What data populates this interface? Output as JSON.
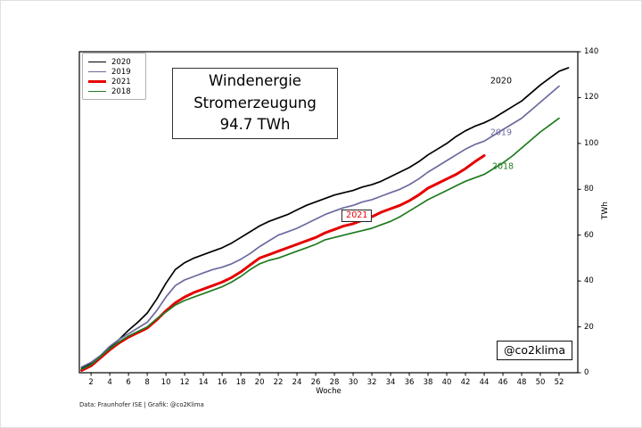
{
  "title_box": {
    "line1": "Windenergie",
    "line2": "Stromerzeugung",
    "line3": "94.7 TWh"
  },
  "watermark": "@co2klima",
  "footer": "Data: Fraunhofer ISE | Grafik: @co2Klima",
  "legend": {
    "items": [
      {
        "label": "2020",
        "color": "#000000",
        "thickness": 1.6
      },
      {
        "label": "2019",
        "color": "#6a6aa0",
        "thickness": 1.6
      },
      {
        "label": "2021",
        "color": "#e60000",
        "thickness": 3
      },
      {
        "label": "2018",
        "color": "#1f7a1f",
        "thickness": 1.6
      }
    ]
  },
  "chart_data": {
    "type": "line",
    "title": "Windenergie Stromerzeugung 94.7 TWh",
    "xlabel": "Woche",
    "ylabel": "TWh",
    "xlim": [
      0.75,
      54
    ],
    "ylim": [
      0,
      140
    ],
    "x_ticks": [
      2,
      4,
      6,
      8,
      10,
      12,
      14,
      16,
      18,
      20,
      22,
      24,
      26,
      28,
      30,
      32,
      34,
      36,
      38,
      40,
      42,
      44,
      46,
      48,
      50,
      52
    ],
    "y_ticks": [
      0,
      20,
      40,
      60,
      80,
      100,
      120,
      140
    ],
    "grid": false,
    "legend_position": "upper left",
    "series": [
      {
        "name": "2020",
        "color": "#000000",
        "line_width": 1.7,
        "start_week": 1,
        "values": [
          2,
          4,
          7,
          11,
          14.5,
          18.5,
          22,
          26,
          32,
          39,
          45,
          48,
          50,
          51.5,
          53,
          54.5,
          56.5,
          59,
          61.5,
          64,
          66,
          67.5,
          69,
          71,
          73,
          74.5,
          76,
          77.5,
          78.5,
          79.5,
          81,
          82,
          83.5,
          85.5,
          87.5,
          89.5,
          92,
          95,
          97.5,
          100,
          103,
          105.5,
          107.5,
          109,
          111,
          113.5,
          116,
          118.5,
          122,
          125.5,
          128.5,
          131.5,
          133
        ]
      },
      {
        "name": "2019",
        "color": "#6a6aa0",
        "line_width": 1.7,
        "start_week": 1,
        "values": [
          2.5,
          4.5,
          7.5,
          11.5,
          14.5,
          17,
          19.5,
          22,
          27,
          33,
          38,
          40.5,
          42,
          43.5,
          45,
          46,
          47.5,
          49.5,
          52,
          55,
          57.5,
          60,
          61.5,
          63,
          65,
          67,
          69,
          70.5,
          72,
          73,
          74.5,
          75.5,
          77,
          78.5,
          80,
          82,
          84.5,
          87.5,
          90,
          92.5,
          95,
          97.5,
          99.5,
          101,
          103.5,
          106,
          108.5,
          111,
          114.5,
          118,
          121.5,
          125
        ]
      },
      {
        "name": "2021",
        "color": "#e60000",
        "line_width": 3,
        "start_week": 1,
        "values": [
          1,
          3,
          6.5,
          10,
          13,
          15.5,
          17.5,
          19.5,
          23,
          27,
          30.5,
          33,
          35,
          36.5,
          38,
          39.5,
          41.5,
          44,
          47,
          50,
          51.5,
          53,
          54.5,
          56,
          57.5,
          59,
          61,
          62.5,
          64,
          65,
          66.5,
          68,
          70,
          71.5,
          73,
          75,
          77.5,
          80.5,
          82.5,
          84.5,
          86.5,
          89,
          92,
          94.7
        ]
      },
      {
        "name": "2018",
        "color": "#1f7a1f",
        "line_width": 1.7,
        "start_week": 1,
        "values": [
          1.5,
          3.5,
          7,
          10.5,
          13.5,
          16,
          18,
          20,
          23.5,
          26.5,
          29.5,
          31.5,
          33,
          34.5,
          36,
          37.5,
          39.5,
          42,
          45,
          47.5,
          49,
          50,
          51.5,
          53,
          54.5,
          56,
          58,
          59,
          60,
          61,
          62,
          63,
          64.5,
          66,
          68,
          70.5,
          73,
          75.5,
          77.5,
          79.5,
          81.5,
          83.5,
          85,
          86.5,
          89,
          91.5,
          94.5,
          98,
          101.5,
          105,
          108,
          111
        ]
      }
    ],
    "annotations": [
      {
        "text": "2020",
        "color": "#000000",
        "week": 45.8,
        "twh": 127.0,
        "boxed": false
      },
      {
        "text": "2019",
        "color": "#6a6aa0",
        "week": 45.8,
        "twh": 104.5,
        "boxed": false
      },
      {
        "text": "2018",
        "color": "#1f7a1f",
        "week": 46.0,
        "twh": 90.0,
        "boxed": false
      },
      {
        "text": "2021",
        "color": "#e60000",
        "week": 30.4,
        "twh": 68.5,
        "boxed": true
      }
    ]
  }
}
